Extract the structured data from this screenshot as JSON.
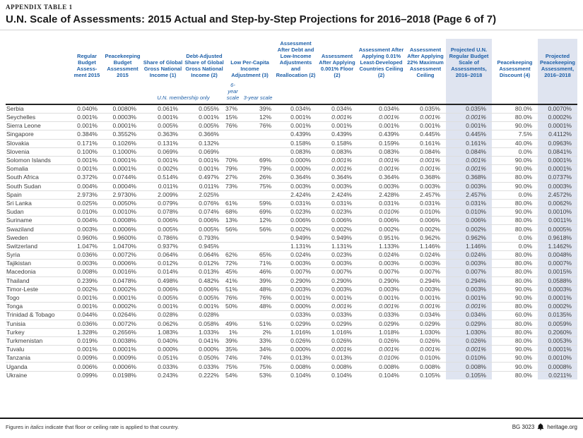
{
  "page": {
    "kicker": "APPENDIX TABLE 1",
    "title": "U.N. Scale of Assessments: 2015 Actual and Step-by-Step Projections for 2016–2018 (Page 6 of 7)"
  },
  "table": {
    "headers": [
      "Regular Budget Assess­ment 2015",
      "Peacekeeping Budget Assessment 2015",
      "Share of Global Gross National Income (1)",
      "Debt-Adjusted Share of Global Gross National Income (2)",
      "Low Per-Capita Income Adjustment (3)",
      "Assessment After Debt and Low-Income Adjustments and Reallocation (2)",
      "Assessment After Applying 0.001% Floor (2)",
      "Assessment After Applying 0.01% Least-Developed Countries Ceiling (2)",
      "Assessment After Applying 22% Maximum Assessment Ceiling",
      "Projected U.N. Regular Budget Scale of Assessments, 2016–2018",
      "Peacekeeping Assessment Discount (4)",
      "Projected Peacekeeping Assessment, 2016–2018"
    ],
    "subheaders": {
      "membership_note": "U.N. membership only",
      "six_year": "6-year scale",
      "three_year": "3-year scale"
    },
    "rows": [
      {
        "country": "Serbia",
        "values": [
          "0.040%",
          "0.0080%",
          "0.061%",
          "0.055%",
          "37%",
          "39%",
          "0.034%",
          "0.034%",
          "0.034%",
          "0.035%",
          "0.035%",
          "80.0%",
          "0.0070%"
        ],
        "italic": []
      },
      {
        "country": "Seychelles",
        "values": [
          "0.001%",
          "0.0003%",
          "0.001%",
          "0.001%",
          "15%",
          "12%",
          "0.001%",
          "0.001%",
          "0.001%",
          "0.001%",
          "0.001%",
          "80.0%",
          "0.0002%"
        ],
        "italic": [
          7,
          8,
          9,
          10
        ]
      },
      {
        "country": "Sierra Leone",
        "values": [
          "0.001%",
          "0.0001%",
          "0.005%",
          "0.005%",
          "76%",
          "76%",
          "0.001%",
          "0.001%",
          "0.001%",
          "0.001%",
          "0.001%",
          "90.0%",
          "0.0001%"
        ],
        "italic": []
      },
      {
        "country": "Singapore",
        "values": [
          "0.384%",
          "0.3552%",
          "0.363%",
          "0.366%",
          "",
          "",
          "0.439%",
          "0.439%",
          "0.439%",
          "0.445%",
          "0.445%",
          "7.5%",
          "0.4112%"
        ],
        "italic": []
      },
      {
        "country": "Slovakia",
        "values": [
          "0.171%",
          "0.1026%",
          "0.131%",
          "0.132%",
          "",
          "",
          "0.158%",
          "0.158%",
          "0.159%",
          "0.161%",
          "0.161%",
          "40.0%",
          "0.0963%"
        ],
        "italic": []
      },
      {
        "country": "Slovenia",
        "values": [
          "0.100%",
          "0.1000%",
          "0.069%",
          "0.069%",
          "",
          "",
          "0.083%",
          "0.083%",
          "0.083%",
          "0.084%",
          "0.084%",
          "0.0%",
          "0.0841%"
        ],
        "italic": []
      },
      {
        "country": "Solomon Islands",
        "values": [
          "0.001%",
          "0.0001%",
          "0.001%",
          "0.001%",
          "70%",
          "69%",
          "0.000%",
          "0.001%",
          "0.001%",
          "0.001%",
          "0.001%",
          "90.0%",
          "0.0001%"
        ],
        "italic": [
          7,
          8,
          9,
          10
        ]
      },
      {
        "country": "Somalia",
        "values": [
          "0.001%",
          "0.0001%",
          "0.002%",
          "0.001%",
          "79%",
          "79%",
          "0.000%",
          "0.001%",
          "0.001%",
          "0.001%",
          "0.001%",
          "90.0%",
          "0.0001%"
        ],
        "italic": [
          7,
          8,
          9,
          10
        ]
      },
      {
        "country": "South Africa",
        "values": [
          "0.372%",
          "0.0744%",
          "0.514%",
          "0.497%",
          "27%",
          "26%",
          "0.364%",
          "0.364%",
          "0.364%",
          "0.368%",
          "0.368%",
          "80.0%",
          "0.0737%"
        ],
        "italic": []
      },
      {
        "country": "South Sudan",
        "values": [
          "0.004%",
          "0.0004%",
          "0.011%",
          "0.011%",
          "73%",
          "75%",
          "0.003%",
          "0.003%",
          "0.003%",
          "0.003%",
          "0.003%",
          "90.0%",
          "0.0003%"
        ],
        "italic": []
      },
      {
        "country": "Spain",
        "values": [
          "2.973%",
          "2.9730%",
          "2.009%",
          "2.025%",
          "",
          "",
          "2.424%",
          "2.424%",
          "2.428%",
          "2.457%",
          "2.457%",
          "0.0%",
          "2.4572%"
        ],
        "italic": []
      },
      {
        "country": "Sri Lanka",
        "values": [
          "0.025%",
          "0.0050%",
          "0.079%",
          "0.076%",
          "61%",
          "59%",
          "0.031%",
          "0.031%",
          "0.031%",
          "0.031%",
          "0.031%",
          "80.0%",
          "0.0062%"
        ],
        "italic": []
      },
      {
        "country": "Sudan",
        "values": [
          "0.010%",
          "0.0010%",
          "0.078%",
          "0.074%",
          "68%",
          "69%",
          "0.023%",
          "0.023%",
          "0.010%",
          "0.010%",
          "0.010%",
          "90.0%",
          "0.0010%"
        ],
        "italic": [
          8
        ]
      },
      {
        "country": "Suriname",
        "values": [
          "0.004%",
          "0.0008%",
          "0.006%",
          "0.006%",
          "13%",
          "12%",
          "0.006%",
          "0.006%",
          "0.006%",
          "0.006%",
          "0.006%",
          "80.0%",
          "0.0011%"
        ],
        "italic": []
      },
      {
        "country": "Swaziland",
        "values": [
          "0.003%",
          "0.0006%",
          "0.005%",
          "0.005%",
          "56%",
          "56%",
          "0.002%",
          "0.002%",
          "0.002%",
          "0.002%",
          "0.002%",
          "80.0%",
          "0.0005%"
        ],
        "italic": []
      },
      {
        "country": "Sweden",
        "values": [
          "0.960%",
          "0.9600%",
          "0.786%",
          "0.793%",
          "",
          "",
          "0.949%",
          "0.949%",
          "0.951%",
          "0.962%",
          "0.962%",
          "0.0%",
          "0.9618%"
        ],
        "italic": []
      },
      {
        "country": "Switzerland",
        "values": [
          "1.047%",
          "1.0470%",
          "0.937%",
          "0.945%",
          "",
          "",
          "1.131%",
          "1.131%",
          "1.133%",
          "1.146%",
          "1.146%",
          "0.0%",
          "1.1462%"
        ],
        "italic": []
      },
      {
        "country": "Syria",
        "values": [
          "0.036%",
          "0.0072%",
          "0.064%",
          "0.064%",
          "62%",
          "65%",
          "0.024%",
          "0.023%",
          "0.024%",
          "0.024%",
          "0.024%",
          "80.0%",
          "0.0048%"
        ],
        "italic": []
      },
      {
        "country": "Tajikistan",
        "values": [
          "0.003%",
          "0.0006%",
          "0.012%",
          "0.012%",
          "72%",
          "71%",
          "0.003%",
          "0.003%",
          "0.003%",
          "0.003%",
          "0.003%",
          "80.0%",
          "0.0007%"
        ],
        "italic": []
      },
      {
        "country": "Macedonia",
        "values": [
          "0.008%",
          "0.0016%",
          "0.014%",
          "0.013%",
          "45%",
          "46%",
          "0.007%",
          "0.007%",
          "0.007%",
          "0.007%",
          "0.007%",
          "80.0%",
          "0.0015%"
        ],
        "italic": []
      },
      {
        "country": "Thailand",
        "values": [
          "0.239%",
          "0.0478%",
          "0.498%",
          "0.482%",
          "41%",
          "39%",
          "0.290%",
          "0.290%",
          "0.290%",
          "0.294%",
          "0.294%",
          "80.0%",
          "0.0588%"
        ],
        "italic": []
      },
      {
        "country": "Timor-Leste",
        "values": [
          "0.002%",
          "0.0002%",
          "0.006%",
          "0.006%",
          "51%",
          "48%",
          "0.003%",
          "0.003%",
          "0.003%",
          "0.003%",
          "0.003%",
          "90.0%",
          "0.0003%"
        ],
        "italic": []
      },
      {
        "country": "Togo",
        "values": [
          "0.001%",
          "0.0001%",
          "0.005%",
          "0.005%",
          "76%",
          "76%",
          "0.001%",
          "0.001%",
          "0.001%",
          "0.001%",
          "0.001%",
          "90.0%",
          "0.0001%"
        ],
        "italic": []
      },
      {
        "country": "Tonga",
        "values": [
          "0.001%",
          "0.0002%",
          "0.001%",
          "0.001%",
          "50%",
          "48%",
          "0.000%",
          "0.001%",
          "0.001%",
          "0.001%",
          "0.001%",
          "80.0%",
          "0.0002%"
        ],
        "italic": [
          7,
          8,
          9,
          10
        ]
      },
      {
        "country": "Trinidad & Tobago",
        "values": [
          "0.044%",
          "0.0264%",
          "0.028%",
          "0.028%",
          "",
          "",
          "0.033%",
          "0.033%",
          "0.033%",
          "0.034%",
          "0.034%",
          "60.0%",
          "0.0135%"
        ],
        "italic": []
      },
      {
        "country": "Tunisia",
        "values": [
          "0.036%",
          "0.0072%",
          "0.062%",
          "0.058%",
          "49%",
          "51%",
          "0.029%",
          "0.029%",
          "0.029%",
          "0.029%",
          "0.029%",
          "80.0%",
          "0.0059%"
        ],
        "italic": []
      },
      {
        "country": "Turkey",
        "values": [
          "1.328%",
          "0.2656%",
          "1.083%",
          "1.033%",
          "1%",
          "2%",
          "1.016%",
          "1.016%",
          "1.018%",
          "1.030%",
          "1.030%",
          "80.0%",
          "0.2060%"
        ],
        "italic": []
      },
      {
        "country": "Turkmenistan",
        "values": [
          "0.019%",
          "0.0038%",
          "0.040%",
          "0.041%",
          "39%",
          "33%",
          "0.026%",
          "0.026%",
          "0.026%",
          "0.026%",
          "0.026%",
          "80.0%",
          "0.0053%"
        ],
        "italic": []
      },
      {
        "country": "Tuvalu",
        "values": [
          "0.001%",
          "0.0001%",
          "0.000%",
          "0.000%",
          "35%",
          "34%",
          "0.000%",
          "0.001%",
          "0.001%",
          "0.001%",
          "0.001%",
          "90.0%",
          "0.0001%"
        ],
        "italic": [
          7,
          8,
          9,
          10
        ]
      },
      {
        "country": "Tanzania",
        "values": [
          "0.009%",
          "0.0009%",
          "0.051%",
          "0.050%",
          "74%",
          "74%",
          "0.013%",
          "0.013%",
          "0.010%",
          "0.010%",
          "0.010%",
          "90.0%",
          "0.0010%"
        ],
        "italic": [
          8
        ]
      },
      {
        "country": "Uganda",
        "values": [
          "0.006%",
          "0.0006%",
          "0.033%",
          "0.033%",
          "75%",
          "75%",
          "0.008%",
          "0.008%",
          "0.008%",
          "0.008%",
          "0.008%",
          "90.0%",
          "0.0008%"
        ],
        "italic": []
      },
      {
        "country": "Ukraine",
        "values": [
          "0.099%",
          "0.0198%",
          "0.243%",
          "0.222%",
          "54%",
          "53%",
          "0.104%",
          "0.104%",
          "0.104%",
          "0.105%",
          "0.105%",
          "80.0%",
          "0.0211%"
        ],
        "italic": []
      }
    ]
  },
  "footer": {
    "note_prefix": "Figures in ",
    "note_italic": "italics",
    "note_suffix": " indicate that floor or ceiling rate is applied to that country.",
    "doc_id": "BG 3023",
    "site": "heritage.org"
  },
  "colors": {
    "header_blue": "#1d5fa8",
    "highlight_band": "#dfe4f0",
    "rule_dark": "#161616",
    "row_rule": "#dedede",
    "body_text": "#3d3d3d"
  }
}
